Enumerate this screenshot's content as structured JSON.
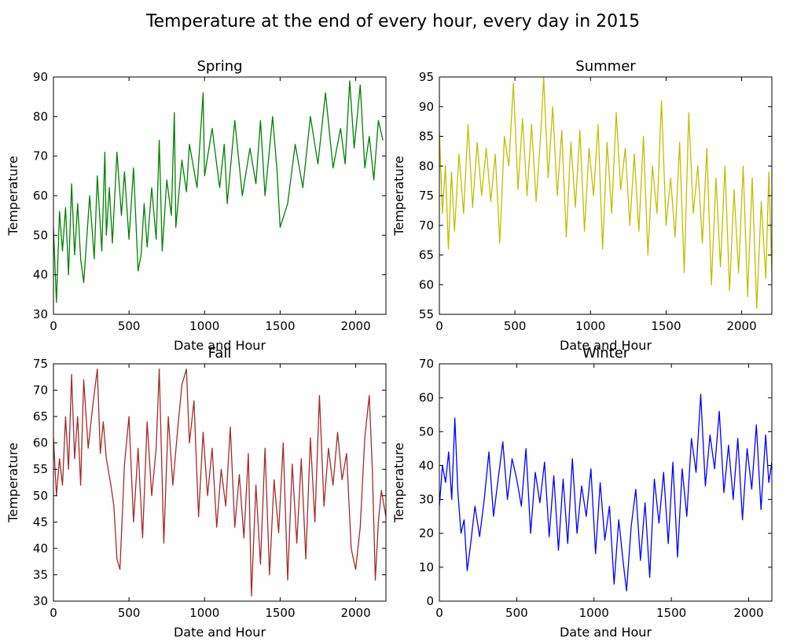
{
  "figure": {
    "title": "Temperature at the end of every hour, every day in 2015"
  },
  "chart_data": [
    {
      "type": "line",
      "title": "Spring",
      "xlabel": "Date and Hour",
      "ylabel": "Temperature",
      "xlim": [
        0,
        2200
      ],
      "ylim": [
        30,
        90
      ],
      "xticks": [
        0,
        500,
        1000,
        1500,
        2000
      ],
      "yticks": [
        30,
        40,
        50,
        60,
        70,
        80,
        90
      ],
      "grid": false,
      "color": "#008000",
      "series": [
        {
          "x": [
            0,
            20,
            40,
            60,
            80,
            100,
            120,
            140,
            160,
            180,
            200,
            240,
            270,
            290,
            320,
            340,
            350,
            370,
            390,
            420,
            450,
            470,
            500,
            530,
            560,
            580,
            600,
            620,
            650,
            680,
            700,
            720,
            750,
            780,
            800,
            810,
            850,
            880,
            900,
            950,
            990,
            1000,
            1050,
            1100,
            1130,
            1150,
            1200,
            1250,
            1300,
            1340,
            1370,
            1400,
            1450,
            1480,
            1500,
            1550,
            1600,
            1650,
            1700,
            1750,
            1800,
            1850,
            1900,
            1930,
            1960,
            1990,
            2030,
            2060,
            2090,
            2120,
            2150,
            2180
          ],
          "y": [
            52,
            33,
            56,
            46,
            57,
            40,
            63,
            45,
            58,
            44,
            38,
            60,
            44,
            65,
            46,
            71,
            50,
            62,
            48,
            71,
            55,
            66,
            49,
            67,
            41,
            45,
            58,
            47,
            62,
            49,
            74,
            46,
            64,
            55,
            81,
            52,
            69,
            61,
            73,
            62,
            86,
            65,
            77,
            62,
            73,
            58,
            79,
            60,
            72,
            63,
            79,
            60,
            80,
            66,
            52,
            58,
            73,
            62,
            80,
            68,
            86,
            67,
            77,
            68,
            89,
            72,
            88,
            67,
            75,
            64,
            79,
            74
          ]
        }
      ]
    },
    {
      "type": "line",
      "title": "Summer",
      "xlabel": "Date and Hour",
      "ylabel": "Temperature",
      "xlim": [
        0,
        2200
      ],
      "ylim": [
        55,
        95
      ],
      "xticks": [
        0,
        500,
        1000,
        1500,
        2000
      ],
      "yticks": [
        55,
        60,
        65,
        70,
        75,
        80,
        85,
        90,
        95
      ],
      "grid": false,
      "color": "#bfbf00",
      "series": [
        {
          "x": [
            0,
            20,
            40,
            60,
            80,
            100,
            130,
            160,
            190,
            220,
            250,
            280,
            310,
            340,
            370,
            400,
            430,
            460,
            490,
            520,
            550,
            580,
            610,
            640,
            670,
            690,
            720,
            750,
            780,
            810,
            840,
            870,
            900,
            930,
            960,
            990,
            1020,
            1050,
            1080,
            1110,
            1140,
            1170,
            1200,
            1230,
            1260,
            1290,
            1320,
            1350,
            1380,
            1410,
            1440,
            1470,
            1500,
            1530,
            1560,
            1590,
            1620,
            1650,
            1680,
            1710,
            1740,
            1770,
            1800,
            1830,
            1860,
            1890,
            1920,
            1950,
            1980,
            2010,
            2040,
            2070,
            2100,
            2130,
            2160,
            2180,
            2200
          ],
          "y": [
            86,
            72,
            80,
            66,
            79,
            69,
            82,
            72,
            87,
            73,
            84,
            75,
            83,
            74,
            82,
            67,
            85,
            80,
            94,
            76,
            88,
            75,
            87,
            74,
            85,
            95,
            78,
            90,
            75,
            86,
            68,
            84,
            73,
            86,
            69,
            83,
            75,
            87,
            66,
            84,
            72,
            89,
            76,
            83,
            70,
            82,
            69,
            85,
            65,
            80,
            72,
            91,
            70,
            78,
            68,
            84,
            62,
            89,
            72,
            80,
            67,
            83,
            60,
            78,
            63,
            80,
            59,
            76,
            62,
            80,
            58,
            78,
            56,
            74,
            61,
            79,
            62
          ]
        }
      ]
    },
    {
      "type": "line",
      "title": "Fall",
      "xlabel": "Date and Hour",
      "ylabel": "Temperature",
      "xlim": [
        0,
        2200
      ],
      "ylim": [
        30,
        75
      ],
      "xticks": [
        0,
        500,
        1000,
        1500,
        2000
      ],
      "yticks": [
        30,
        35,
        40,
        45,
        50,
        55,
        60,
        65,
        70,
        75
      ],
      "grid": false,
      "color": "#a52a2a",
      "series": [
        {
          "x": [
            0,
            20,
            40,
            60,
            80,
            100,
            120,
            140,
            160,
            180,
            200,
            230,
            260,
            290,
            310,
            330,
            350,
            380,
            400,
            420,
            440,
            470,
            500,
            530,
            560,
            590,
            620,
            650,
            680,
            700,
            730,
            760,
            790,
            820,
            850,
            880,
            900,
            930,
            960,
            990,
            1020,
            1050,
            1080,
            1110,
            1140,
            1170,
            1200,
            1230,
            1260,
            1290,
            1310,
            1340,
            1370,
            1400,
            1430,
            1460,
            1490,
            1520,
            1550,
            1580,
            1610,
            1640,
            1670,
            1700,
            1730,
            1760,
            1790,
            1820,
            1850,
            1880,
            1910,
            1940,
            1970,
            2000,
            2030,
            2060,
            2090,
            2110,
            2130,
            2150,
            2170,
            2200
          ],
          "y": [
            61,
            50,
            57,
            52,
            65,
            55,
            73,
            57,
            65,
            52,
            72,
            59,
            67,
            74,
            58,
            64,
            57,
            52,
            48,
            38,
            36,
            56,
            65,
            45,
            59,
            42,
            64,
            50,
            59,
            74,
            41,
            65,
            52,
            62,
            71,
            74,
            60,
            68,
            46,
            62,
            50,
            59,
            44,
            55,
            48,
            63,
            44,
            54,
            42,
            58,
            31,
            52,
            37,
            59,
            35,
            53,
            43,
            60,
            34,
            56,
            41,
            57,
            38,
            61,
            45,
            69,
            48,
            59,
            52,
            62,
            53,
            58,
            40,
            36,
            44,
            61,
            69,
            55,
            34,
            45,
            51,
            46
          ]
        }
      ]
    },
    {
      "type": "line",
      "title": "Winter",
      "xlabel": "Date and Hour",
      "ylabel": "Temperature",
      "xlim": [
        0,
        2150
      ],
      "ylim": [
        0,
        70
      ],
      "xticks": [
        0,
        500,
        1000,
        1500,
        2000
      ],
      "yticks": [
        0,
        10,
        20,
        30,
        40,
        50,
        60,
        70
      ],
      "grid": false,
      "color": "#0000ff",
      "series": [
        {
          "x": [
            0,
            20,
            40,
            60,
            80,
            100,
            120,
            140,
            160,
            180,
            200,
            230,
            260,
            290,
            320,
            350,
            380,
            410,
            440,
            470,
            500,
            530,
            560,
            590,
            620,
            650,
            680,
            710,
            740,
            770,
            800,
            830,
            860,
            890,
            920,
            950,
            980,
            1010,
            1040,
            1070,
            1100,
            1130,
            1160,
            1190,
            1210,
            1240,
            1270,
            1300,
            1330,
            1360,
            1390,
            1420,
            1450,
            1480,
            1510,
            1540,
            1570,
            1600,
            1630,
            1660,
            1690,
            1720,
            1750,
            1780,
            1810,
            1840,
            1870,
            1900,
            1930,
            1960,
            1990,
            2020,
            2050,
            2080,
            2110,
            2130,
            2150
          ],
          "y": [
            28,
            40,
            35,
            44,
            30,
            54,
            32,
            20,
            24,
            9,
            16,
            28,
            19,
            30,
            44,
            25,
            36,
            47,
            30,
            42,
            36,
            28,
            45,
            20,
            38,
            29,
            41,
            19,
            37,
            15,
            36,
            17,
            42,
            20,
            34,
            25,
            39,
            14,
            35,
            18,
            28,
            5,
            24,
            11,
            3,
            22,
            33,
            12,
            29,
            7,
            36,
            23,
            38,
            17,
            41,
            13,
            39,
            25,
            48,
            38,
            61,
            34,
            49,
            39,
            56,
            32,
            46,
            30,
            48,
            24,
            45,
            33,
            52,
            27,
            49,
            35,
            41
          ]
        }
      ]
    }
  ]
}
